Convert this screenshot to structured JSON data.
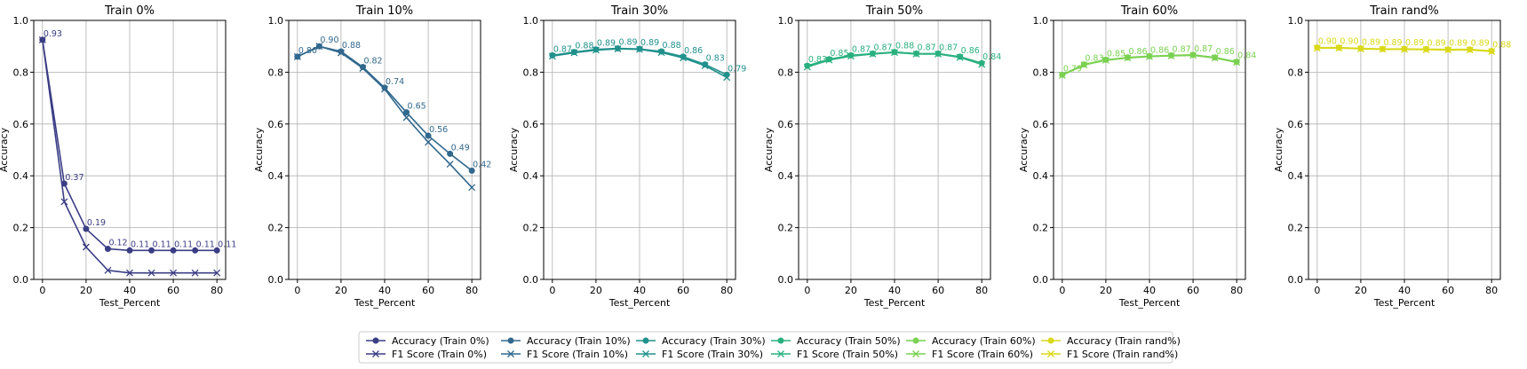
{
  "chart_data": [
    {
      "type": "line",
      "title": "Train 0%",
      "xlabel": "Test_Percent",
      "ylabel": "Accuracy",
      "xlim": [
        -4,
        84
      ],
      "ylim": [
        0,
        1
      ],
      "xticks": [
        0,
        20,
        40,
        60,
        80
      ],
      "yticks": [
        0.0,
        0.2,
        0.4,
        0.6,
        0.8,
        1.0
      ],
      "grid": true,
      "color": "#3b3d85",
      "x": [
        0,
        10,
        20,
        30,
        40,
        50,
        60,
        70,
        80
      ],
      "series": [
        {
          "name": "Accuracy (Train 0%)",
          "marker": "circle",
          "values": [
            0.925,
            0.37,
            0.195,
            0.118,
            0.112,
            0.112,
            0.112,
            0.112,
            0.112
          ]
        },
        {
          "name": "F1 Score (Train 0%)",
          "marker": "x",
          "values": [
            0.925,
            0.3,
            0.125,
            0.035,
            0.025,
            0.025,
            0.025,
            0.025,
            0.025
          ]
        }
      ],
      "data_labels": [
        "0.93",
        "0.37",
        "0.19",
        "0.12",
        "0.11",
        "0.11",
        "0.11",
        "0.11",
        "0.11"
      ]
    },
    {
      "type": "line",
      "title": "Train 10%",
      "xlabel": "Test_Percent",
      "ylabel": "Accuracy",
      "xlim": [
        -4,
        84
      ],
      "ylim": [
        0,
        1
      ],
      "xticks": [
        0,
        20,
        40,
        60,
        80
      ],
      "yticks": [
        0.0,
        0.2,
        0.4,
        0.6,
        0.8,
        1.0
      ],
      "grid": true,
      "color": "#31688e",
      "x": [
        0,
        10,
        20,
        30,
        40,
        50,
        60,
        70,
        80
      ],
      "series": [
        {
          "name": "Accuracy (Train 10%)",
          "marker": "circle",
          "values": [
            0.86,
            0.9,
            0.88,
            0.82,
            0.74,
            0.645,
            0.555,
            0.485,
            0.42
          ]
        },
        {
          "name": "F1 Score (Train 10%)",
          "marker": "x",
          "values": [
            0.86,
            0.9,
            0.875,
            0.815,
            0.735,
            0.625,
            0.53,
            0.445,
            0.355
          ]
        }
      ],
      "data_labels": [
        "0.86",
        "0.90",
        "0.88",
        "0.82",
        "0.74",
        "0.65",
        "0.56",
        "0.49",
        "0.42"
      ]
    },
    {
      "type": "line",
      "title": "Train 30%",
      "xlabel": "Test_Percent",
      "ylabel": "Accuracy",
      "xlim": [
        -4,
        84
      ],
      "ylim": [
        0,
        1
      ],
      "xticks": [
        0,
        20,
        40,
        60,
        80
      ],
      "yticks": [
        0.0,
        0.2,
        0.4,
        0.6,
        0.8,
        1.0
      ],
      "grid": true,
      "color": "#21918c",
      "x": [
        0,
        10,
        20,
        30,
        40,
        50,
        60,
        70,
        80
      ],
      "series": [
        {
          "name": "Accuracy (Train 30%)",
          "marker": "circle",
          "values": [
            0.865,
            0.878,
            0.888,
            0.892,
            0.89,
            0.88,
            0.86,
            0.83,
            0.79
          ]
        },
        {
          "name": "F1 Score (Train 30%)",
          "marker": "x",
          "values": [
            0.862,
            0.875,
            0.885,
            0.89,
            0.888,
            0.876,
            0.855,
            0.825,
            0.78
          ]
        }
      ],
      "data_labels": [
        "0.87",
        "0.88",
        "0.89",
        "0.89",
        "0.89",
        "0.88",
        "0.86",
        "0.83",
        "0.79"
      ]
    },
    {
      "type": "line",
      "title": "Train 50%",
      "xlabel": "Test_Percent",
      "ylabel": "Accuracy",
      "xlim": [
        -4,
        84
      ],
      "ylim": [
        0,
        1
      ],
      "xticks": [
        0,
        20,
        40,
        60,
        80
      ],
      "yticks": [
        0.0,
        0.2,
        0.4,
        0.6,
        0.8,
        1.0
      ],
      "grid": true,
      "color": "#2ab07f",
      "x": [
        0,
        10,
        20,
        30,
        40,
        50,
        60,
        70,
        80
      ],
      "series": [
        {
          "name": "Accuracy (Train 50%)",
          "marker": "circle",
          "values": [
            0.825,
            0.85,
            0.865,
            0.872,
            0.878,
            0.872,
            0.872,
            0.86,
            0.835
          ]
        },
        {
          "name": "F1 Score (Train 50%)",
          "marker": "x",
          "values": [
            0.82,
            0.847,
            0.862,
            0.87,
            0.876,
            0.87,
            0.87,
            0.857,
            0.83
          ]
        }
      ],
      "data_labels": [
        "0.83",
        "0.85",
        "0.87",
        "0.87",
        "0.88",
        "0.87",
        "0.87",
        "0.86",
        "0.84"
      ]
    },
    {
      "type": "line",
      "title": "Train 60%",
      "xlabel": "Test_Percent",
      "ylabel": "Accuracy",
      "xlim": [
        -4,
        84
      ],
      "ylim": [
        0,
        1
      ],
      "xticks": [
        0,
        20,
        40,
        60,
        80
      ],
      "yticks": [
        0.0,
        0.2,
        0.4,
        0.6,
        0.8,
        1.0
      ],
      "grid": true,
      "color": "#7ad151",
      "x": [
        0,
        10,
        20,
        30,
        40,
        50,
        60,
        70,
        80
      ],
      "series": [
        {
          "name": "Accuracy (Train 60%)",
          "marker": "circle",
          "values": [
            0.79,
            0.83,
            0.848,
            0.857,
            0.862,
            0.865,
            0.867,
            0.857,
            0.84
          ]
        },
        {
          "name": "F1 Score (Train 60%)",
          "marker": "x",
          "values": [
            0.788,
            0.828,
            0.846,
            0.855,
            0.86,
            0.863,
            0.865,
            0.855,
            0.838
          ]
        }
      ],
      "data_labels": [
        "0.79",
        "0.83",
        "0.85",
        "0.86",
        "0.86",
        "0.87",
        "0.87",
        "0.86",
        "0.84"
      ]
    },
    {
      "type": "line",
      "title": "Train rand%",
      "xlabel": "Test_Percent",
      "ylabel": "Accuracy",
      "xlim": [
        -4,
        84
      ],
      "ylim": [
        0,
        1
      ],
      "xticks": [
        0,
        20,
        40,
        60,
        80
      ],
      "yticks": [
        0.0,
        0.2,
        0.4,
        0.6,
        0.8,
        1.0
      ],
      "grid": true,
      "color": "#d9d91a",
      "x": [
        0,
        10,
        20,
        30,
        40,
        50,
        60,
        70,
        80
      ],
      "series": [
        {
          "name": "Accuracy (Train rand%)",
          "marker": "circle",
          "values": [
            0.895,
            0.895,
            0.892,
            0.89,
            0.89,
            0.889,
            0.888,
            0.888,
            0.882
          ]
        },
        {
          "name": "F1 Score (Train rand%)",
          "marker": "x",
          "values": [
            0.893,
            0.893,
            0.89,
            0.888,
            0.888,
            0.887,
            0.886,
            0.886,
            0.88
          ]
        }
      ],
      "data_labels": [
        "0.90",
        "0.90",
        "0.89",
        "0.89",
        "0.89",
        "0.89",
        "0.89",
        "0.89",
        "0.88"
      ]
    }
  ],
  "legend": {
    "placement": "bottom-center",
    "ncols": 6
  }
}
